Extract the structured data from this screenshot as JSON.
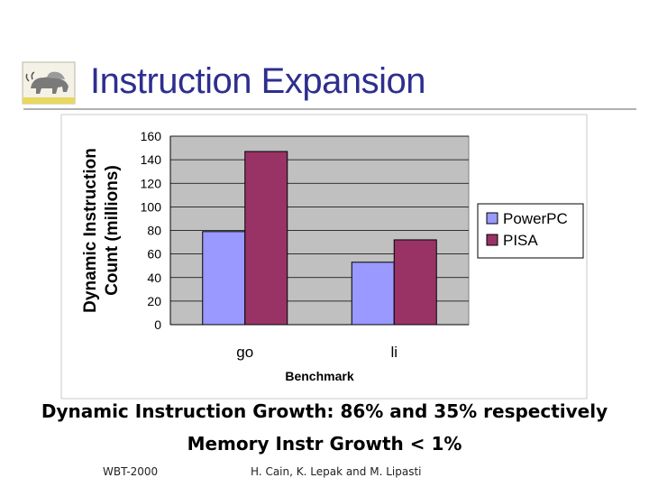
{
  "slide": {
    "title": "Instruction Expansion",
    "caption_line1": "Dynamic Instruction Growth: 86% and 35% respectively",
    "caption_line2": "Memory Instr Growth < 1%",
    "footer_left": "WBT-2000",
    "footer_center": "H. Cain, K. Lepak and M. Lipasti",
    "logo_icon": "cattle-logo-icon"
  },
  "colors": {
    "title": "#2e2e8f",
    "plot_bg": "#c0c0c0",
    "powerpc": "#9999ff",
    "pisa": "#993366"
  },
  "chart_data": {
    "type": "bar",
    "categories": [
      "go",
      "li"
    ],
    "series": [
      {
        "name": "PowerPC",
        "values": [
          79,
          53
        ]
      },
      {
        "name": "PISA",
        "values": [
          147,
          72
        ]
      }
    ],
    "xlabel": "Benchmark",
    "ylabel": "Dynamic Instruction Count (millions)",
    "ylim": [
      0,
      160
    ],
    "yticks": [
      0,
      20,
      40,
      60,
      80,
      100,
      120,
      140,
      160
    ],
    "grid": true,
    "legend": "right"
  }
}
